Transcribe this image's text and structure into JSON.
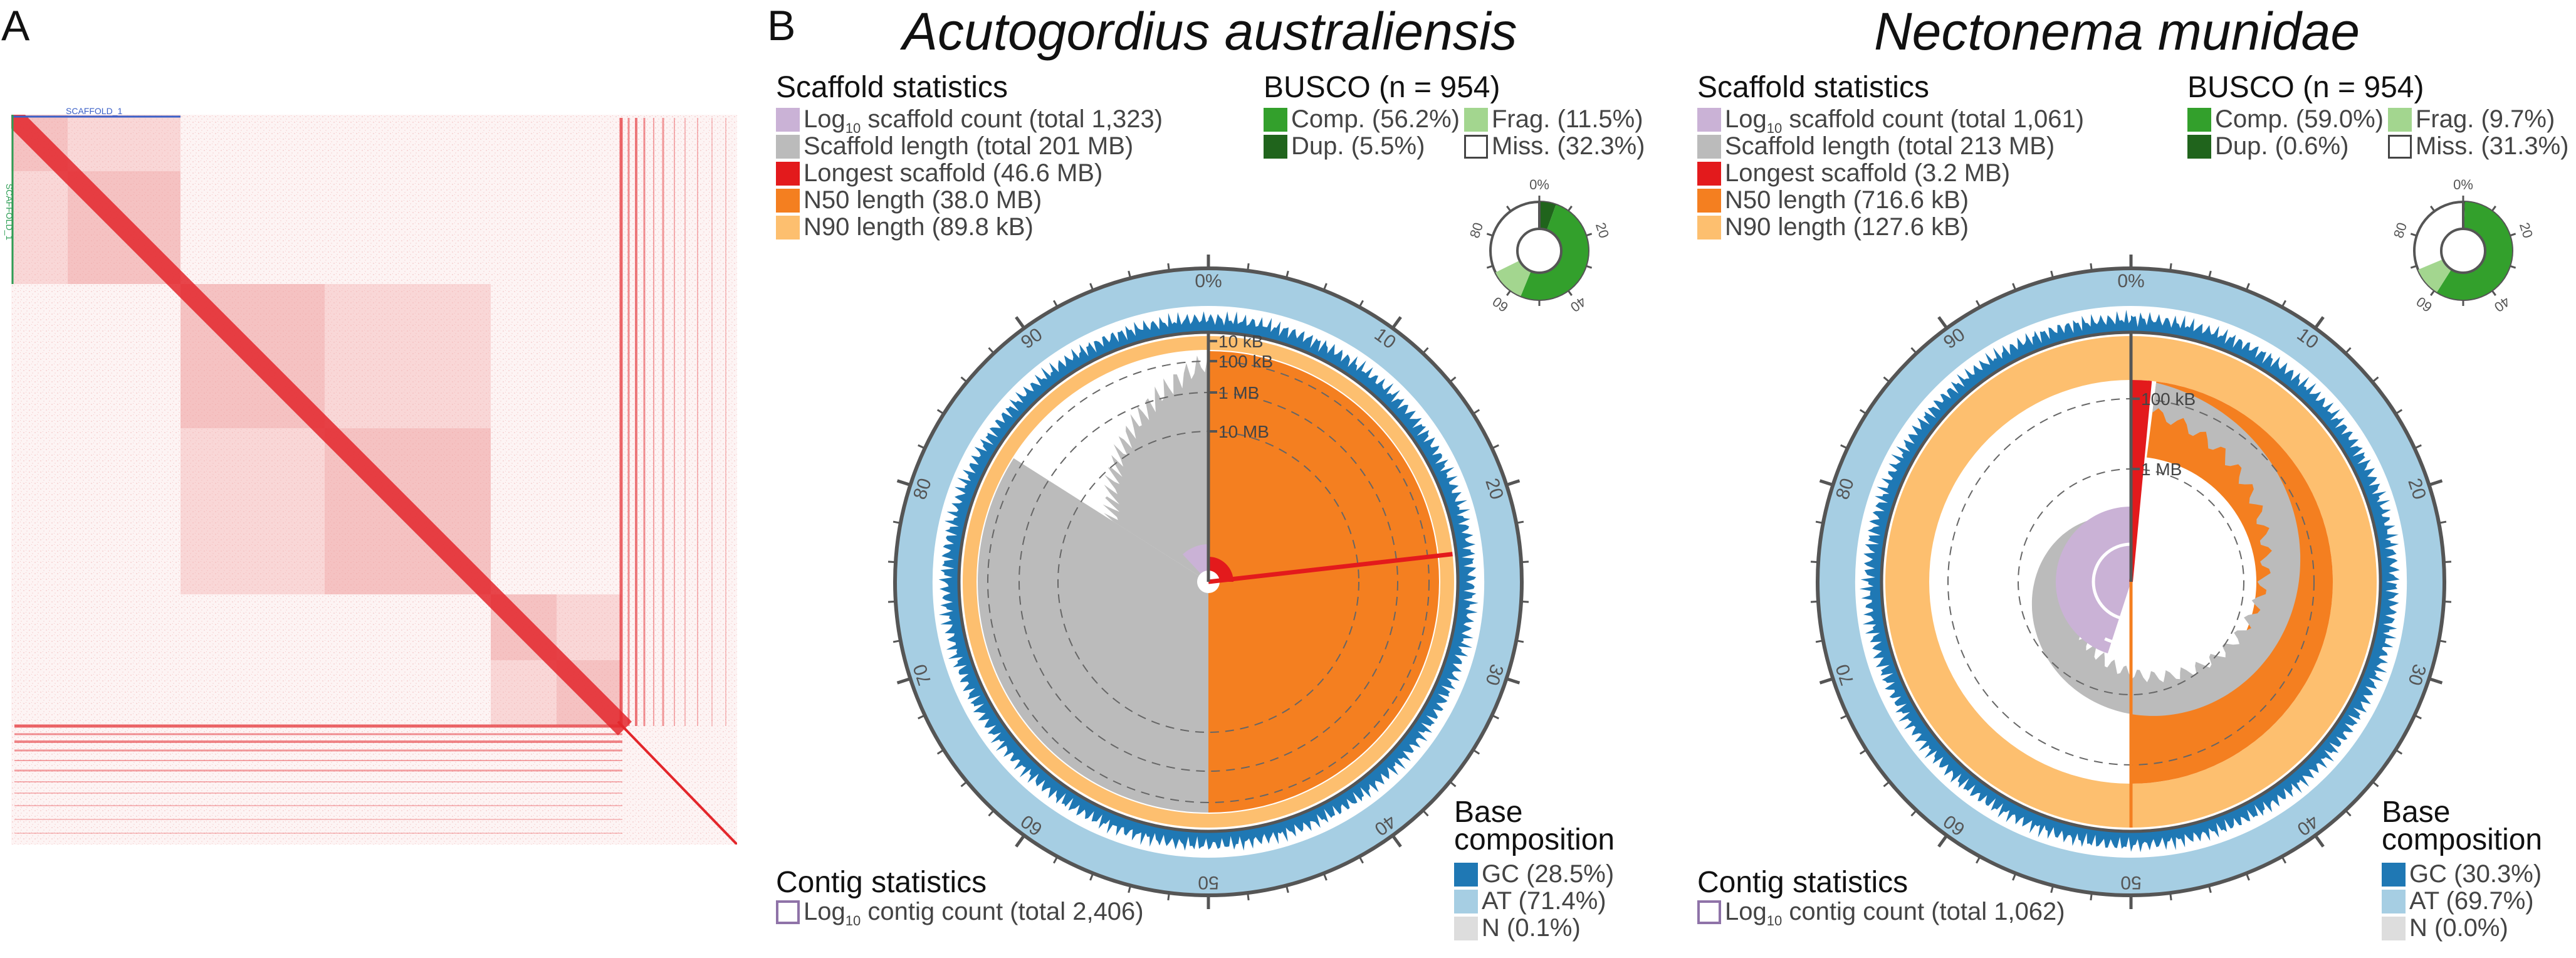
{
  "figure": {
    "panel_a_label": "A",
    "panel_b_label": "B"
  },
  "hic_map": {
    "top_scaffold_label": "SCAFFOLD_1",
    "side_scaffold_label": "SCAFFOLD_1",
    "colors": {
      "signal": "#e3262b",
      "background": "#fdf3f3",
      "scaffold_label_top": "#3a5fc7",
      "scaffold_label_side": "#2e9e55"
    }
  },
  "snail_plots": [
    {
      "species": "Acutogordius australiensis",
      "scaffold_statistics": {
        "title": "Scaffold statistics",
        "items": [
          {
            "pre": "Log",
            "sub": "10",
            "post": " scaffold count (total 1,323)",
            "color": "#cab2d6"
          },
          {
            "pre": "Scaffold length (total 201 MB)",
            "sub": "",
            "post": "",
            "color": "#bbbbbb"
          },
          {
            "pre": "Longest scaffold (46.6 MB)",
            "sub": "",
            "post": "",
            "color": "#e31a1c"
          },
          {
            "pre": "N50 length (38.0 MB)",
            "sub": "",
            "post": "",
            "color": "#f47f20"
          },
          {
            "pre": "N90 length (89.8 kB)",
            "sub": "",
            "post": "",
            "color": "#fdbf6f"
          }
        ]
      },
      "busco": {
        "title": "BUSCO (n = 954)",
        "comp": "Comp. (56.2%)",
        "frag": "Frag. (11.5%)",
        "dup": "Dup. (5.5%)",
        "miss": "Miss. (32.3%)",
        "values": {
          "single": 50.7,
          "duplicated": 5.5,
          "fragmented": 11.5,
          "missing": 32.3
        },
        "ticks": [
          "0%",
          "20",
          "40",
          "60",
          "80"
        ]
      },
      "contig_statistics": {
        "title": "Contig statistics",
        "pre": "Log",
        "sub": "10",
        "post": " contig count (total 2,406)"
      },
      "base_composition": {
        "title_line1": "Base",
        "title_line2": "composition",
        "gc": "GC (28.5%)",
        "at": "AT (71.4%)",
        "n": "N (0.1%)"
      },
      "scale_labels": [
        "10 kB",
        "100 kB",
        "1 MB",
        "10 MB"
      ],
      "percent_ticks": [
        "0%",
        "10",
        "20",
        "30",
        "40",
        "50",
        "60",
        "70",
        "80",
        "90"
      ],
      "values": {
        "longest_pct": 23.2,
        "n50_pct": 50,
        "n90_pct": 90,
        "scaffold_fill_end_pct": 84
      }
    },
    {
      "species": "Nectonema munidae",
      "scaffold_statistics": {
        "title": "Scaffold statistics",
        "items": [
          {
            "pre": "Log",
            "sub": "10",
            "post": " scaffold count (total 1,061)",
            "color": "#cab2d6"
          },
          {
            "pre": "Scaffold length (total 213 MB)",
            "sub": "",
            "post": "",
            "color": "#bbbbbb"
          },
          {
            "pre": "Longest scaffold (3.2 MB)",
            "sub": "",
            "post": "",
            "color": "#e31a1c"
          },
          {
            "pre": "N50 length (716.6 kB)",
            "sub": "",
            "post": "",
            "color": "#f47f20"
          },
          {
            "pre": "N90 length (127.6 kB)",
            "sub": "",
            "post": "",
            "color": "#fdbf6f"
          }
        ]
      },
      "busco": {
        "title": "BUSCO (n = 954)",
        "comp": "Comp. (59.0%)",
        "frag": "Frag. (9.7%)",
        "dup": "Dup. (0.6%)",
        "miss": "Miss. (31.3%)",
        "values": {
          "single": 58.4,
          "duplicated": 0.6,
          "fragmented": 9.7,
          "missing": 31.3
        },
        "ticks": [
          "0%",
          "20",
          "40",
          "60",
          "80"
        ]
      },
      "contig_statistics": {
        "title": "Contig statistics",
        "pre": "Log",
        "sub": "10",
        "post": " contig count (total 1,062)"
      },
      "base_composition": {
        "title_line1": "Base",
        "title_line2": "composition",
        "gc": "GC (30.3%)",
        "at": "AT (69.7%)",
        "n": "N (0.0%)"
      },
      "scale_labels": [
        "100 kB",
        "1 MB"
      ],
      "percent_ticks": [
        "0%",
        "10",
        "20",
        "30",
        "40",
        "50",
        "60",
        "70",
        "80",
        "90"
      ],
      "values": {
        "longest_pct": 1.5,
        "n50_pct": 50,
        "n90_pct": 90,
        "scaffold_fill_end_pct": 90
      }
    }
  ],
  "colors": {
    "gc": "#1f78b4",
    "at": "#a6cee3",
    "n": "#dddddd",
    "orange": "#f47f20",
    "light_orange": "#fdbf6f",
    "gray": "#bbbbbb",
    "red": "#e31a1c",
    "purple": "#cab2d6",
    "busco_comp": "#33a02c",
    "busco_dup": "#20641c",
    "busco_frag": "#a3d68f",
    "frame": "#555555"
  }
}
